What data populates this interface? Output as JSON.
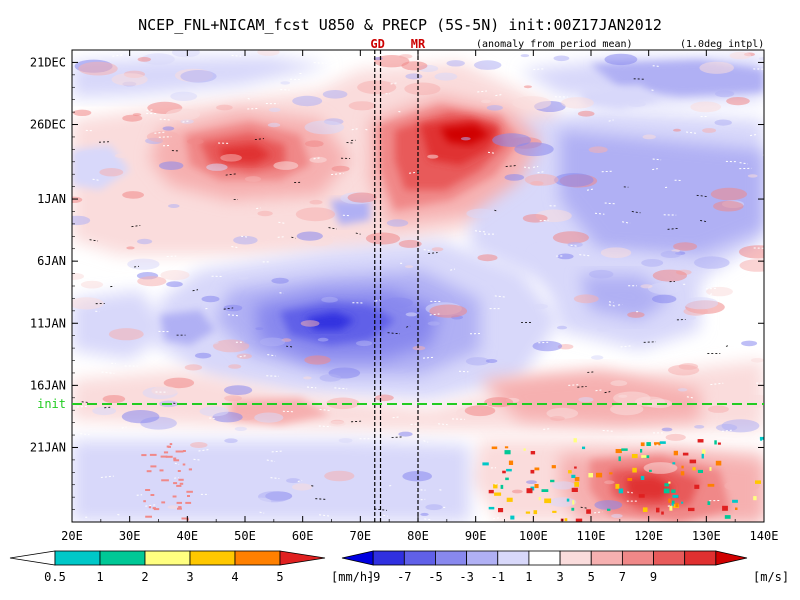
{
  "title": "NCEP_FNL+NICAM_fcst U850 & PRECP (5S-5N) init:00Z17JAN2012",
  "subtitle_left": "(anomaly from period mean)",
  "subtitle_right": "(1.0deg intpl)",
  "chart_data": {
    "type": "heatmap",
    "x_axis": {
      "range_deg": [
        20,
        140
      ],
      "ticks": [
        20,
        30,
        40,
        50,
        60,
        70,
        80,
        90,
        100,
        110,
        120,
        130,
        140
      ],
      "tick_labels": [
        "20E",
        "30E",
        "40E",
        "50E",
        "60E",
        "70E",
        "80E",
        "90E",
        "100E",
        "110E",
        "120E",
        "130E",
        "140E"
      ]
    },
    "y_axis": {
      "direction": "time increases downward",
      "start_day": -1,
      "end_day": 37,
      "tick_labels": [
        "21DEC",
        "26DEC",
        "1JAN",
        "6JAN",
        "11JAN",
        "16JAN",
        "21JAN"
      ],
      "tick_days": [
        0,
        5,
        11,
        16,
        21,
        26,
        31
      ]
    },
    "init_line": {
      "label": "init",
      "day": 27.5,
      "color": "#22cc22"
    },
    "markers": [
      {
        "label": "GD",
        "lon": 73,
        "color": "#cc0000"
      },
      {
        "label": "MR",
        "lon": 80,
        "color": "#cc0000"
      }
    ],
    "dashed_vertical_lons": [
      72.5,
      73.5,
      80
    ],
    "u850_anomaly_features": [
      {
        "sign": "westerly",
        "lon": 50,
        "day": 5,
        "peak": 9
      },
      {
        "sign": "westerly",
        "lon": 86,
        "day": 4,
        "peak": 9
      },
      {
        "sign": "easterly",
        "lon": 66,
        "day": 19,
        "peak": -9
      },
      {
        "sign": "westerly",
        "lon": 125,
        "day": 33,
        "peak": 9
      }
    ],
    "colorbar_precip": {
      "unit": "[mm/h]",
      "labels": [
        "0.5",
        "1",
        "2",
        "3",
        "4",
        "5"
      ],
      "colors": [
        "#ffffff",
        "#00c8c8",
        "#00c896",
        "#ffff80",
        "#ffc800",
        "#ff8000",
        "#e02020"
      ]
    },
    "colorbar_u850": {
      "unit": "[m/s]",
      "labels": [
        "-9",
        "-7",
        "-5",
        "-3",
        "-1",
        "1",
        "3",
        "5",
        "7",
        "9"
      ],
      "colors": [
        "#0000e0",
        "#3030e0",
        "#6060e8",
        "#8888ee",
        "#b0b0f4",
        "#d8d8fa",
        "#ffffff",
        "#fadcdc",
        "#f6b0b0",
        "#f08888",
        "#e85a5a",
        "#e03030",
        "#d00000"
      ]
    }
  }
}
